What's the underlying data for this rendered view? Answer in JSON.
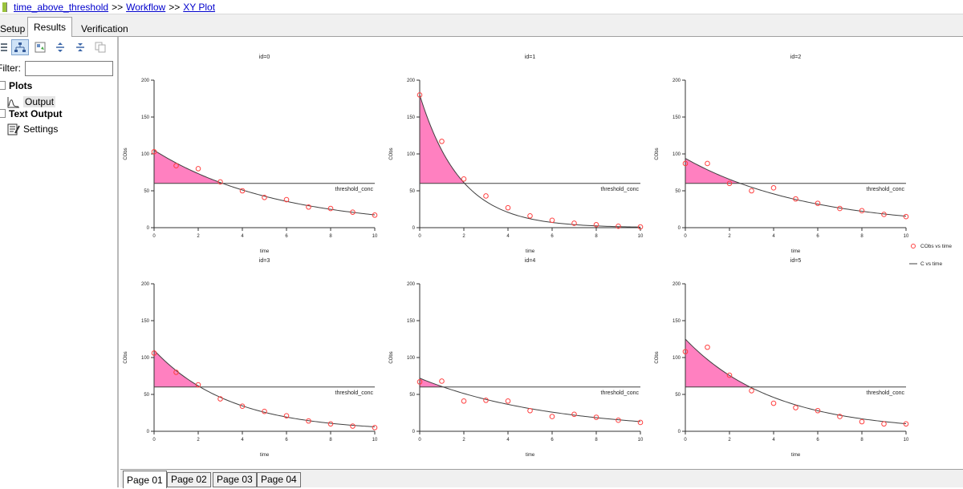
{
  "breadcrumb": {
    "items": [
      "time_above_threshold",
      "Workflow",
      "XY Plot"
    ],
    "separator": ">>"
  },
  "tabs": [
    {
      "label": "Setup",
      "active": false
    },
    {
      "label": "Results",
      "active": true
    },
    {
      "label": "Verification",
      "active": false
    }
  ],
  "left_panel": {
    "filter_label": "Filter:",
    "filter_value": "",
    "tree": [
      {
        "label": "Plots",
        "children": [
          {
            "label": "Output",
            "icon": "line-chart-icon",
            "selected": true
          }
        ]
      },
      {
        "label": "Text Output",
        "children": [
          {
            "label": "Settings",
            "icon": "settings-document-icon",
            "selected": false
          }
        ]
      }
    ]
  },
  "page_tabs": [
    {
      "label": "Page 01",
      "active": true
    },
    {
      "label": "Page 02",
      "active": false
    },
    {
      "label": "Page 03",
      "active": false
    },
    {
      "label": "Page 04",
      "active": false
    }
  ],
  "colors": {
    "fill": "#ff80c0",
    "observed": "#ff4040",
    "line": "#404040",
    "threshold": "#404040"
  },
  "chart_data": {
    "type": "scatter",
    "xlabel": "time",
    "ylabel": "CObs",
    "xlim": [
      0,
      10
    ],
    "ylim": [
      0,
      200
    ],
    "xticks": [
      0,
      2,
      4,
      6,
      8,
      10
    ],
    "yticks": [
      0,
      50,
      100,
      150,
      200
    ],
    "threshold": {
      "value": 60,
      "label": "threshold_conc"
    },
    "legend": {
      "placement": "right",
      "entries": [
        "CObs vs time",
        "C vs time"
      ]
    },
    "panels": [
      {
        "title": "id=0",
        "c0": 105,
        "k": 0.18,
        "obs": [
          [
            0,
            103
          ],
          [
            1,
            84
          ],
          [
            2,
            80
          ],
          [
            3,
            62
          ],
          [
            4,
            50
          ],
          [
            5,
            41
          ],
          [
            6,
            38
          ],
          [
            7,
            28
          ],
          [
            8,
            26
          ],
          [
            9,
            21
          ],
          [
            10,
            17
          ]
        ]
      },
      {
        "title": "id=1",
        "c0": 180,
        "k": 0.54,
        "obs": [
          [
            0,
            180
          ],
          [
            1,
            117
          ],
          [
            2,
            66
          ],
          [
            3,
            43
          ],
          [
            4,
            27
          ],
          [
            5,
            16
          ],
          [
            6,
            10
          ],
          [
            7,
            6
          ],
          [
            8,
            4
          ],
          [
            9,
            2
          ],
          [
            10,
            1
          ]
        ]
      },
      {
        "title": "id=2",
        "c0": 94,
        "k": 0.18,
        "obs": [
          [
            0,
            87
          ],
          [
            1,
            87
          ],
          [
            2,
            60
          ],
          [
            3,
            50
          ],
          [
            4,
            54
          ],
          [
            5,
            39
          ],
          [
            6,
            33
          ],
          [
            7,
            26
          ],
          [
            8,
            23
          ],
          [
            9,
            18
          ],
          [
            10,
            15
          ]
        ]
      },
      {
        "title": "id=3",
        "c0": 110,
        "k": 0.29,
        "obs": [
          [
            0,
            106
          ],
          [
            1,
            80
          ],
          [
            2,
            63
          ],
          [
            3,
            44
          ],
          [
            4,
            34
          ],
          [
            5,
            27
          ],
          [
            6,
            21
          ],
          [
            7,
            14
          ],
          [
            8,
            10
          ],
          [
            9,
            7
          ],
          [
            10,
            5
          ]
        ]
      },
      {
        "title": "id=4",
        "c0": 72,
        "k": 0.17,
        "obs": [
          [
            0,
            67
          ],
          [
            1,
            68
          ],
          [
            2,
            41
          ],
          [
            3,
            42
          ],
          [
            4,
            41
          ],
          [
            5,
            28
          ],
          [
            6,
            20
          ],
          [
            7,
            23
          ],
          [
            8,
            19
          ],
          [
            9,
            15
          ],
          [
            10,
            12
          ]
        ]
      },
      {
        "title": "id=5",
        "c0": 125,
        "k": 0.25,
        "obs": [
          [
            0,
            108
          ],
          [
            1,
            114
          ],
          [
            2,
            76
          ],
          [
            3,
            55
          ],
          [
            4,
            38
          ],
          [
            5,
            32
          ],
          [
            6,
            28
          ],
          [
            7,
            20
          ],
          [
            8,
            13
          ],
          [
            9,
            10
          ],
          [
            10,
            10
          ]
        ]
      }
    ]
  }
}
